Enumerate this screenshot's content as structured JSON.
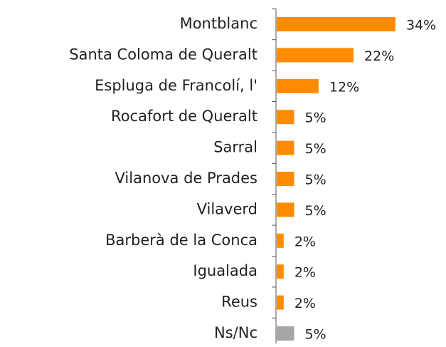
{
  "chart_data": {
    "type": "bar",
    "orientation": "horizontal",
    "categories": [
      "Montblanc",
      "Santa Coloma de Queralt",
      "Espluga de Francolí, l'",
      "Rocafort de Queralt",
      "Sarral",
      "Vilanova de Prades",
      "Vilaverd",
      "Barberà de la Conca",
      "Igualada",
      "Reus",
      "Ns/Nc"
    ],
    "values": [
      34,
      22,
      12,
      5,
      5,
      5,
      5,
      2,
      2,
      2,
      5
    ],
    "value_labels": [
      "34%",
      "22%",
      "12%",
      "5%",
      "5%",
      "5%",
      "5%",
      "2%",
      "2%",
      "2%",
      "5%"
    ],
    "colors": [
      "#ff8c00",
      "#ff8c00",
      "#ff8c00",
      "#ff8c00",
      "#ff8c00",
      "#ff8c00",
      "#ff8c00",
      "#ff8c00",
      "#ff8c00",
      "#ff8c00",
      "#a6a6a6"
    ]
  }
}
